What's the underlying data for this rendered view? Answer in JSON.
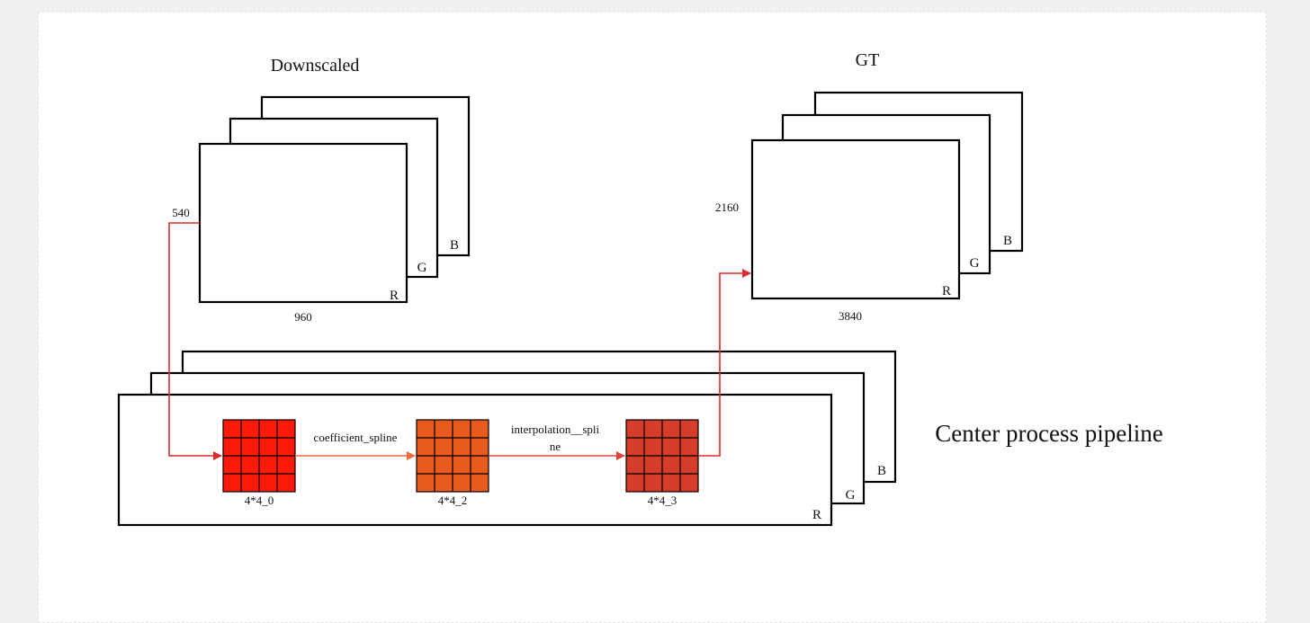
{
  "downscaled": {
    "title": "Downscaled",
    "height_label": "540",
    "width_label": "960",
    "channels": [
      "R",
      "G",
      "B"
    ]
  },
  "gt": {
    "title": "GT",
    "height_label": "2160",
    "width_label": "3840",
    "channels": [
      "R",
      "G",
      "B"
    ]
  },
  "pipeline": {
    "title": "Center process pipeline",
    "channels": [
      "R",
      "G",
      "B"
    ],
    "stages": [
      {
        "label": "4*4_0",
        "color": "#ff1a0a"
      },
      {
        "label": "4*4_2",
        "color": "#e85a1e"
      },
      {
        "label": "4*4_3",
        "color": "#d63c2c"
      }
    ],
    "edges": [
      {
        "label_lines": [
          "coefficient_spline"
        ],
        "color": "#ee6a3a"
      },
      {
        "label_lines": [
          "interpolation__spli",
          "ne"
        ],
        "color": "#e0453a"
      }
    ]
  },
  "colors": {
    "arrow": "#dd2c2c"
  }
}
